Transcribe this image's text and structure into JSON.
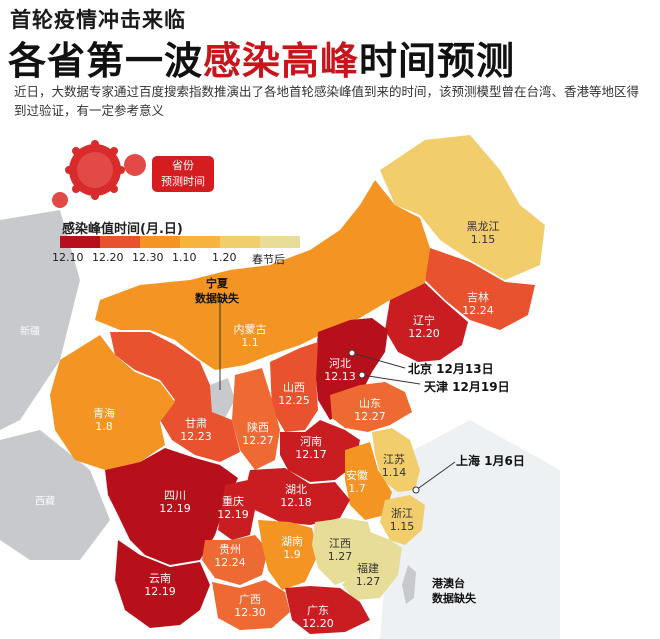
{
  "header": {
    "kicker": "首轮疫情冲击来临",
    "title_part1": "各省第一波",
    "title_highlight": "感染高峰",
    "title_part2": "时间预测",
    "description": "近日，大数据专家通过百度搜索指数推演出了各地首轮感染峰值到来的时间，该预测模型曾在台湾、香港等地区得到过验证，有一定参考意义"
  },
  "tag": {
    "line1": "省份",
    "line2": "预测时间"
  },
  "legend": {
    "title": "感染峰值时间(月.日)",
    "items": [
      {
        "label": "12.10",
        "color": "#b8101b"
      },
      {
        "label": "12.20",
        "color": "#e8522e"
      },
      {
        "label": "12.30",
        "color": "#f39423"
      },
      {
        "label": "1.10",
        "color": "#f6b43e"
      },
      {
        "label": "1.20",
        "color": "#f1cd6c"
      },
      {
        "label": "春节后",
        "color": "#e7dc98"
      }
    ]
  },
  "callouts": {
    "ningxia": "宁夏\n数据缺失",
    "beijing": "北京  12月13日",
    "tianjin": "天津  12月19日",
    "shanghai": "上海  1月6日",
    "gangaotai": "港澳台\n数据缺失"
  },
  "neighbors": [
    "新疆",
    "西藏"
  ],
  "provinces": [
    {
      "name": "黑龙江",
      "value": "1.15",
      "color": "#f1cd6c"
    },
    {
      "name": "吉林",
      "value": "12.24",
      "color": "#e8522e"
    },
    {
      "name": "辽宁",
      "value": "12.20",
      "color": "#c91d22"
    },
    {
      "name": "内蒙古",
      "value": "1.1",
      "color": "#f39423"
    },
    {
      "name": "河北",
      "value": "12.13",
      "color": "#b8101b"
    },
    {
      "name": "山西",
      "value": "12.25",
      "color": "#e8522e"
    },
    {
      "name": "山东",
      "value": "12.27",
      "color": "#ee6a32"
    },
    {
      "name": "陕西",
      "value": "12.27",
      "color": "#ee6a32"
    },
    {
      "name": "河南",
      "value": "12.17",
      "color": "#c91d22"
    },
    {
      "name": "甘肃",
      "value": "12.23",
      "color": "#e8522e"
    },
    {
      "name": "青海",
      "value": "1.8",
      "color": "#f39423"
    },
    {
      "name": "江苏",
      "value": "1.14",
      "color": "#f1cd6c"
    },
    {
      "name": "安徽",
      "value": "1.7",
      "color": "#f39423"
    },
    {
      "name": "浙江",
      "value": "1.15",
      "color": "#f1cd6c"
    },
    {
      "name": "湖北",
      "value": "12.18",
      "color": "#c91d22"
    },
    {
      "name": "四川",
      "value": "12.19",
      "color": "#b8101b"
    },
    {
      "name": "重庆",
      "value": "12.19",
      "color": "#c91d22"
    },
    {
      "name": "贵州",
      "value": "12.24",
      "color": "#ee6a32"
    },
    {
      "name": "湖南",
      "value": "1.9",
      "color": "#f39423"
    },
    {
      "name": "江西",
      "value": "1.27",
      "color": "#e7dc98"
    },
    {
      "name": "福建",
      "value": "1.27",
      "color": "#e7dc98"
    },
    {
      "name": "云南",
      "value": "12.19",
      "color": "#b8101b"
    },
    {
      "name": "广西",
      "value": "12.30",
      "color": "#ee6a32"
    },
    {
      "name": "广东",
      "value": "12.20",
      "color": "#c91d22"
    }
  ]
}
